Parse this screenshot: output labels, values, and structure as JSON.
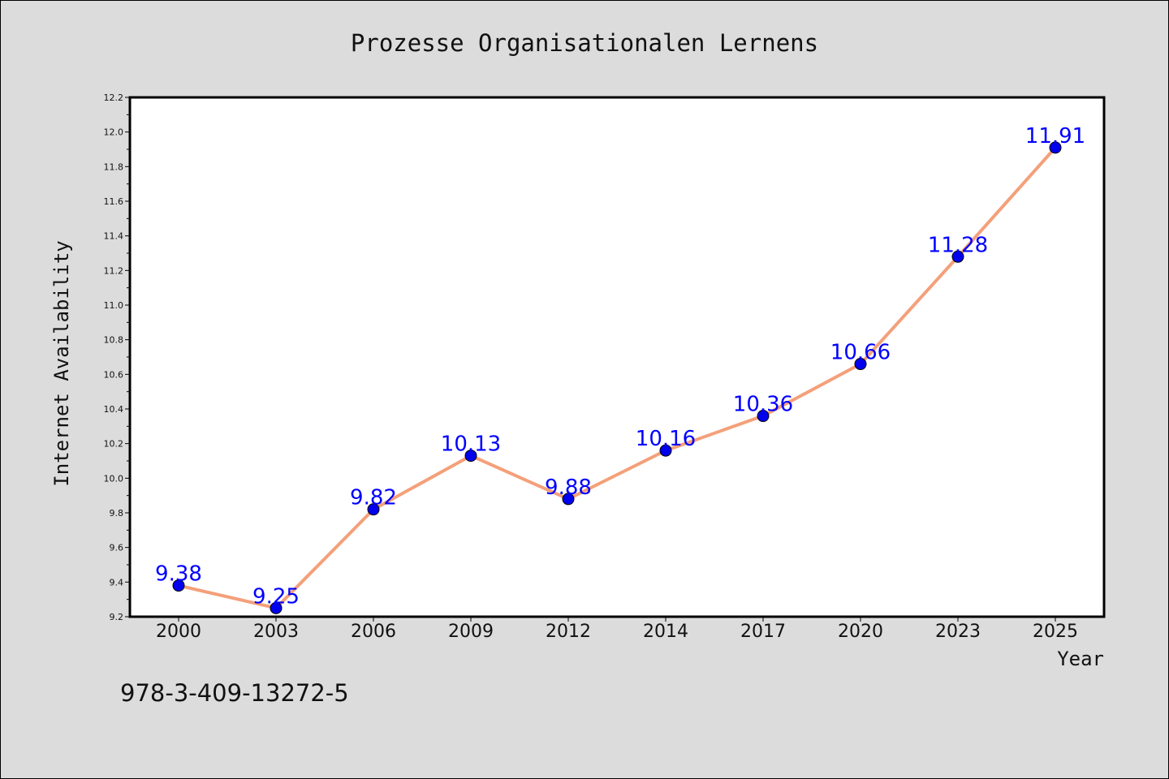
{
  "chart_data": {
    "type": "line",
    "title": "Prozesse Organisationalen Lernens",
    "xlabel": "Year",
    "ylabel": "Internet Availability",
    "categories": [
      "2000",
      "2003",
      "2006",
      "2009",
      "2012",
      "2014",
      "2017",
      "2020",
      "2023",
      "2025"
    ],
    "series": [
      {
        "values": [
          9.38,
          9.25,
          9.82,
          10.13,
          9.88,
          10.16,
          10.36,
          10.66,
          11.28,
          11.91
        ],
        "labels": [
          "9.38",
          "9.25",
          "9.82",
          "10.13",
          "9.88",
          "10.16",
          "10.36",
          "10.66",
          "11.28",
          "11.91"
        ]
      }
    ],
    "ylim": [
      9.2,
      12.2
    ],
    "yticks": [
      "9.2",
      "9.4",
      "9.6",
      "9.8",
      "10.0",
      "10.2",
      "10.4",
      "10.6",
      "10.8",
      "11.0",
      "11.2",
      "11.4",
      "11.6",
      "11.8",
      "12.0",
      "12.2"
    ],
    "grid": false,
    "line_color": "#f4a07a",
    "marker_color": "#0000ee",
    "label_color": "#0000ff"
  },
  "footer": {
    "isbn": "978-3-409-13272-5"
  }
}
